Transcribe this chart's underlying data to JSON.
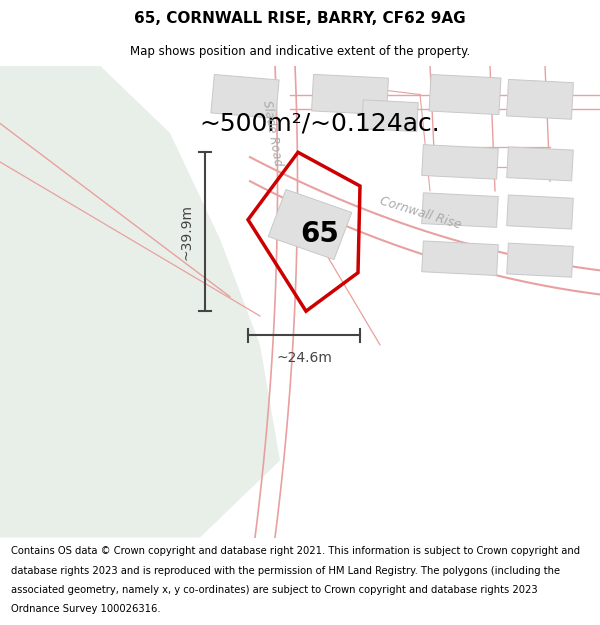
{
  "title": "65, CORNWALL RISE, BARRY, CF62 9AG",
  "subtitle": "Map shows position and indicative extent of the property.",
  "area_text": "~500m²/~0.124ac.",
  "dim_width": "~24.6m",
  "dim_height": "~39.9m",
  "label_65": "65",
  "road_label_1": "Cornwall Rise",
  "road_label_2": "Slade Road",
  "copyright_lines": [
    "Contains OS data © Crown copyright and database right 2021. This information is subject to Crown copyright and",
    "database rights 2023 and is reproduced with the permission of HM Land Registry. The polygons (including the",
    "associated geometry, namely x, y co-ordinates) are subject to Crown copyright and database rights 2023",
    "Ordnance Survey 100026316."
  ],
  "map_bg": "#ffffff",
  "green_color": "#e8efe8",
  "road_line_color": "#e8a0a0",
  "road_fill_color": "#f5e8e8",
  "building_fill": "#e0e0e0",
  "building_edge": "#c8c8c8",
  "property_stroke": "#cc0000",
  "dim_color": "#444444",
  "label_color": "#aaaaaa",
  "fig_width": 6.0,
  "fig_height": 6.25
}
